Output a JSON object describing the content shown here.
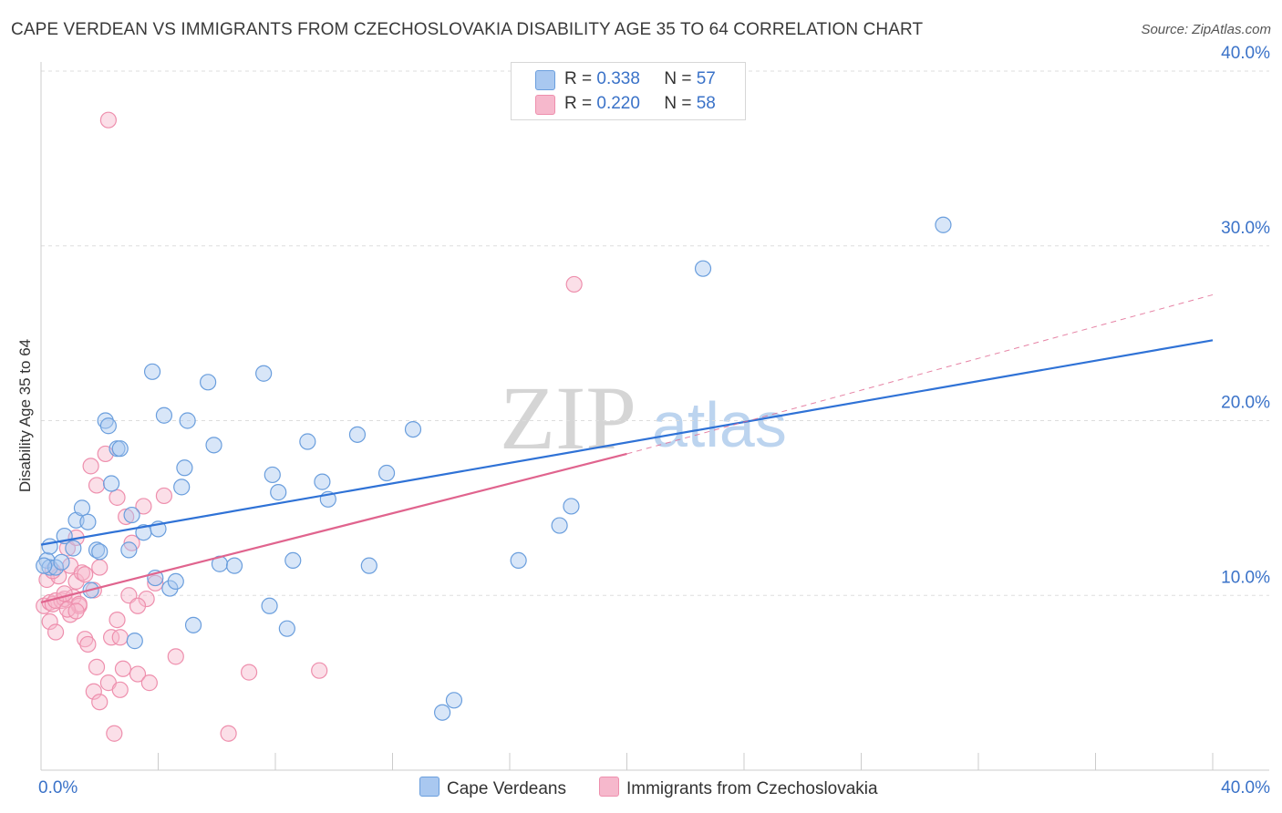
{
  "title": "CAPE VERDEAN VS IMMIGRANTS FROM CZECHOSLOVAKIA DISABILITY AGE 35 TO 64 CORRELATION CHART",
  "source": "Source: ZipAtlas.com",
  "watermark": {
    "zip": "ZIP",
    "atlas": "atlas"
  },
  "legend_top": [
    {
      "r_label": "R =",
      "r_value": "0.338",
      "n_label": "N =",
      "n_value": "57"
    },
    {
      "r_label": "R =",
      "r_value": "0.220",
      "n_label": "N =",
      "n_value": "58"
    }
  ],
  "legend_bottom": [
    "Cape Verdeans",
    "Immigrants from Czechoslovakia"
  ],
  "colors": {
    "blue_fill": "#a9c8f0",
    "blue_stroke": "#6a9edd",
    "blue_line": "#2f72d6",
    "pink_fill": "#f6b8cc",
    "pink_stroke": "#ee8fad",
    "pink_line": "#e0648e",
    "grid": "#dddddd",
    "axis": "#cccccc",
    "tick_text": "#3a72c8"
  },
  "chart_data": {
    "type": "scatter",
    "title": "CAPE VERDEAN VS IMMIGRANTS FROM CZECHOSLOVAKIA DISABILITY AGE 35 TO 64 CORRELATION CHART",
    "xlabel": "",
    "ylabel": "Disability Age 35 to 64",
    "xlim": [
      0,
      40
    ],
    "ylim": [
      0,
      40
    ],
    "x_ticks": [
      "0.0%",
      "40.0%"
    ],
    "y_ticks": [
      {
        "value": 10,
        "label": "10.0%"
      },
      {
        "value": 20,
        "label": "20.0%"
      },
      {
        "value": 30,
        "label": "30.0%"
      },
      {
        "value": 40,
        "label": "40.0%"
      }
    ],
    "series": [
      {
        "name": "Cape Verdeans",
        "color": "blue",
        "R": 0.338,
        "N": 57,
        "trend": {
          "x": [
            0,
            40
          ],
          "y": [
            12.9,
            24.6
          ]
        },
        "points": [
          [
            0.2,
            12.0
          ],
          [
            0.3,
            12.8
          ],
          [
            0.3,
            11.6
          ],
          [
            0.5,
            11.6
          ],
          [
            0.7,
            11.9
          ],
          [
            0.8,
            13.4
          ],
          [
            1.1,
            12.7
          ],
          [
            1.2,
            14.3
          ],
          [
            1.4,
            15.0
          ],
          [
            1.6,
            14.2
          ],
          [
            1.7,
            10.3
          ],
          [
            1.9,
            12.6
          ],
          [
            2.0,
            12.5
          ],
          [
            2.2,
            20.0
          ],
          [
            2.3,
            19.7
          ],
          [
            2.4,
            16.4
          ],
          [
            2.6,
            18.4
          ],
          [
            2.7,
            18.4
          ],
          [
            3.0,
            12.6
          ],
          [
            3.1,
            14.6
          ],
          [
            3.2,
            7.4
          ],
          [
            3.5,
            13.6
          ],
          [
            3.8,
            22.8
          ],
          [
            3.9,
            11.0
          ],
          [
            4.0,
            13.8
          ],
          [
            4.2,
            20.3
          ],
          [
            4.4,
            10.4
          ],
          [
            4.6,
            10.8
          ],
          [
            4.8,
            16.2
          ],
          [
            4.9,
            17.3
          ],
          [
            5.0,
            20.0
          ],
          [
            5.2,
            8.3
          ],
          [
            5.7,
            22.2
          ],
          [
            5.9,
            18.6
          ],
          [
            6.1,
            11.8
          ],
          [
            6.6,
            11.7
          ],
          [
            7.6,
            22.7
          ],
          [
            7.8,
            9.4
          ],
          [
            7.9,
            16.9
          ],
          [
            8.1,
            15.9
          ],
          [
            8.4,
            8.1
          ],
          [
            8.6,
            12.0
          ],
          [
            9.1,
            18.8
          ],
          [
            9.6,
            16.5
          ],
          [
            9.8,
            15.5
          ],
          [
            10.8,
            19.2
          ],
          [
            11.2,
            11.7
          ],
          [
            11.8,
            17.0
          ],
          [
            12.7,
            19.5
          ],
          [
            13.7,
            3.3
          ],
          [
            14.1,
            4.0
          ],
          [
            16.3,
            12.0
          ],
          [
            17.7,
            14.0
          ],
          [
            18.1,
            15.1
          ],
          [
            22.6,
            28.7
          ],
          [
            30.8,
            31.2
          ],
          [
            0.1,
            11.7
          ]
        ]
      },
      {
        "name": "Immigrants from Czechoslovakia",
        "color": "pink",
        "R": 0.22,
        "N": 58,
        "trend": {
          "x": [
            0,
            20
          ],
          "y": [
            9.6,
            18.1
          ]
        },
        "trend_extended": {
          "x": [
            20,
            40
          ],
          "y": [
            18.1,
            27.2
          ]
        },
        "points": [
          [
            0.1,
            9.4
          ],
          [
            0.2,
            10.9
          ],
          [
            0.3,
            9.6
          ],
          [
            0.3,
            8.5
          ],
          [
            0.4,
            9.5
          ],
          [
            0.5,
            7.9
          ],
          [
            0.6,
            11.1
          ],
          [
            0.7,
            9.7
          ],
          [
            0.8,
            9.8
          ],
          [
            0.9,
            12.7
          ],
          [
            1.0,
            11.7
          ],
          [
            1.0,
            8.9
          ],
          [
            1.1,
            9.9
          ],
          [
            1.2,
            10.8
          ],
          [
            1.2,
            13.3
          ],
          [
            1.3,
            9.4
          ],
          [
            1.4,
            11.3
          ],
          [
            1.5,
            7.5
          ],
          [
            1.5,
            11.2
          ],
          [
            1.6,
            7.2
          ],
          [
            1.7,
            17.4
          ],
          [
            1.8,
            4.5
          ],
          [
            1.9,
            16.3
          ],
          [
            1.9,
            5.9
          ],
          [
            2.0,
            3.9
          ],
          [
            2.0,
            11.6
          ],
          [
            2.2,
            18.1
          ],
          [
            2.3,
            5.0
          ],
          [
            2.4,
            7.6
          ],
          [
            2.5,
            2.1
          ],
          [
            2.6,
            15.6
          ],
          [
            2.7,
            4.6
          ],
          [
            2.8,
            5.8
          ],
          [
            2.9,
            14.5
          ],
          [
            3.0,
            10.0
          ],
          [
            3.1,
            13.0
          ],
          [
            3.3,
            5.5
          ],
          [
            3.5,
            15.1
          ],
          [
            3.6,
            9.8
          ],
          [
            3.7,
            5.0
          ],
          [
            3.9,
            10.7
          ],
          [
            4.2,
            15.7
          ],
          [
            4.6,
            6.5
          ],
          [
            6.4,
            2.1
          ],
          [
            7.1,
            5.6
          ],
          [
            9.5,
            5.7
          ],
          [
            18.2,
            27.8
          ],
          [
            2.3,
            37.2
          ],
          [
            0.5,
            9.7
          ],
          [
            0.8,
            10.1
          ],
          [
            1.3,
            9.5
          ],
          [
            2.7,
            7.6
          ],
          [
            0.9,
            9.2
          ],
          [
            0.4,
            11.4
          ],
          [
            1.8,
            10.3
          ],
          [
            3.3,
            9.4
          ],
          [
            2.6,
            8.6
          ],
          [
            1.2,
            9.1
          ]
        ]
      }
    ]
  }
}
